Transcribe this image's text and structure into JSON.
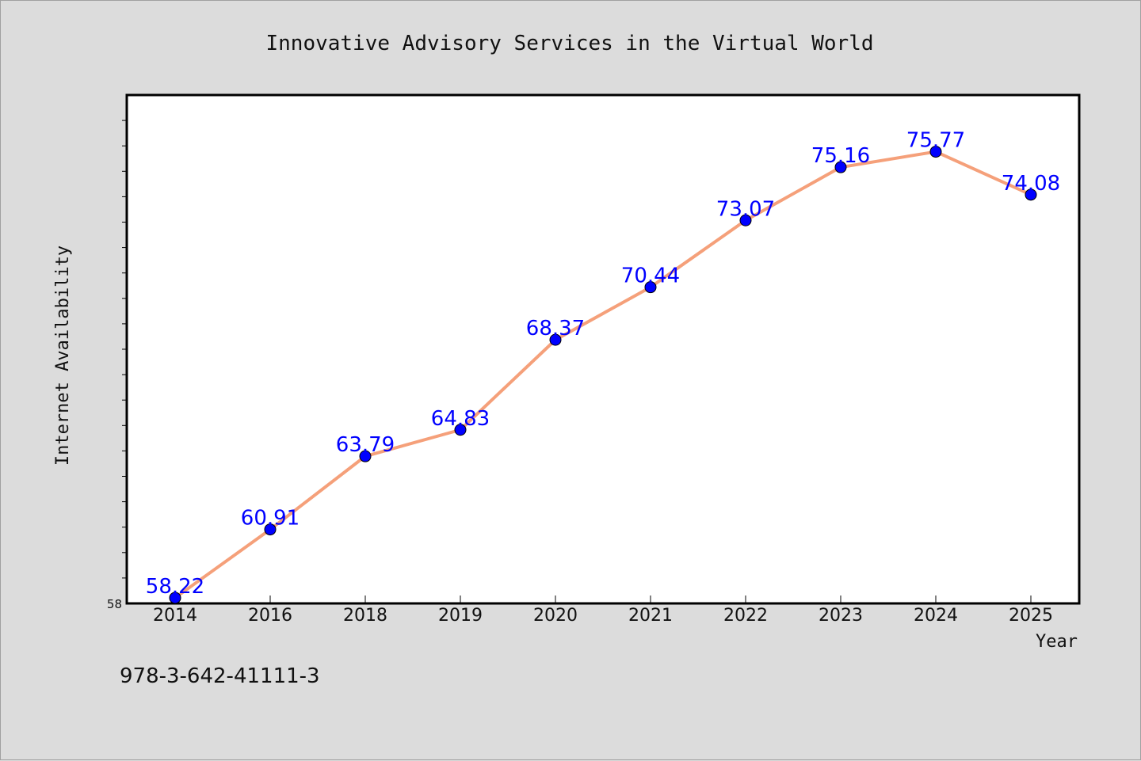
{
  "footnote": "978-3-642-41111-3",
  "colors": {
    "background": "#dcdcdc",
    "plot_background": "#ffffff",
    "line": "#f5a07a",
    "marker": "#0000ff",
    "data_label": "#0000ff"
  },
  "chart_data": {
    "type": "line",
    "title": "Innovative Advisory Services in the Virtual World",
    "xlabel": "Year",
    "ylabel": "Internet Availability",
    "categories": [
      "2014",
      "2016",
      "2018",
      "2019",
      "2020",
      "2021",
      "2022",
      "2023",
      "2024",
      "2025"
    ],
    "values": [
      58.22,
      60.91,
      63.79,
      64.83,
      68.37,
      70.44,
      73.07,
      75.16,
      75.77,
      74.08
    ],
    "data_labels": [
      "58.22",
      "60.91",
      "63.79",
      "64.83",
      "68.37",
      "70.44",
      "73.07",
      "75.16",
      "75.77",
      "74.08"
    ],
    "ylim": [
      58,
      78
    ],
    "ytick_labels": [
      "58"
    ],
    "grid": false,
    "legend": "none"
  }
}
